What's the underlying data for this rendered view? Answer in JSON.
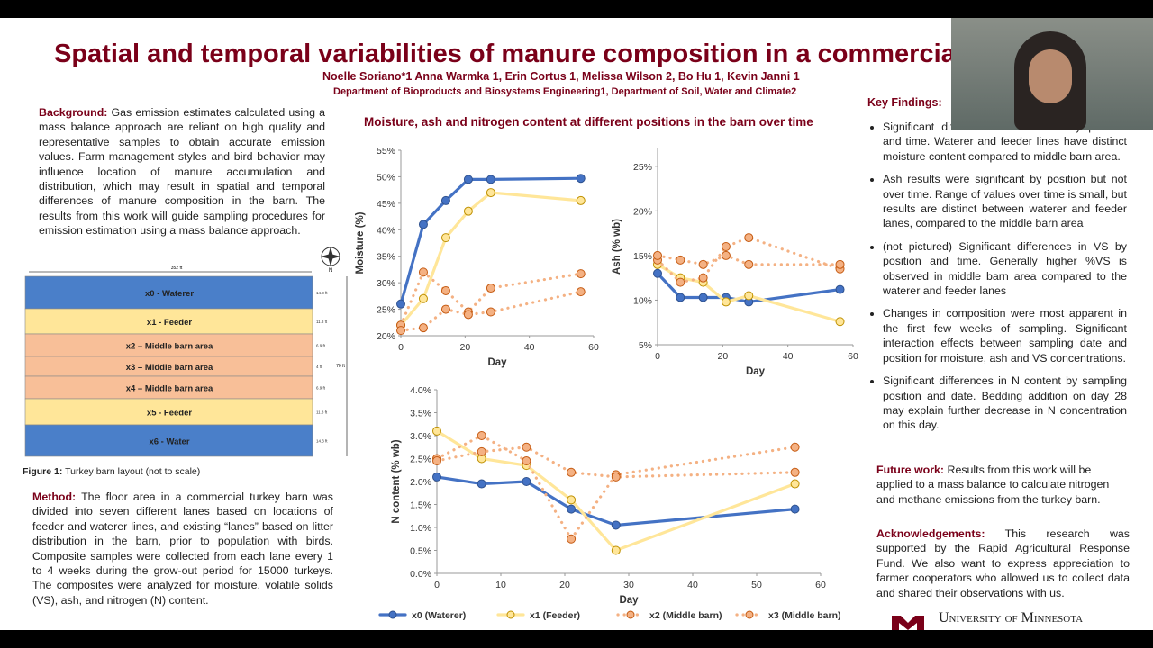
{
  "title": "Spatial and temporal variabilities of manure composition in a commercial tu",
  "authors": "Noelle Soriano*1 Anna Warmka 1, Erin Cortus 1, Melissa Wilson 2, Bo Hu 1, Kevin Janni 1",
  "affiliation": "Department of Bioproducts and Biosystems Engineering1, Department of Soil, Water and Climate2",
  "background": {
    "heading": "Background:",
    "text": "Gas emission estimates calculated using a mass balance approach are reliant on high quality and representative samples to obtain accurate emission values. Farm management styles and bird behavior may influence location of manure accumulation and distribution, which may result in spatial and temporal differences of manure composition in the barn. The results from this work will guide sampling procedures for emission estimation using a mass balance approach."
  },
  "barn": {
    "width_label": "352 ft",
    "total": "70 ft",
    "north": "N",
    "lanes": [
      {
        "label": "x0 - Waterer",
        "dim": "14.3 ft",
        "color": "#4a7fc9"
      },
      {
        "label": "x1 - Feeder",
        "dim": "11.8 ft",
        "color": "#ffe699"
      },
      {
        "label": "x2 – Middle barn area",
        "dim": "6.9 ft",
        "color": "#f8bf98"
      },
      {
        "label": "x3 – Middle barn area",
        "dim": "4 ft",
        "color": "#f8bf98"
      },
      {
        "label": "x4 – Middle barn area",
        "dim": "6.9 ft",
        "color": "#f8bf98"
      },
      {
        "label": "x5 - Feeder",
        "dim": "11.8 ft",
        "color": "#ffe699"
      },
      {
        "label": "x6 - Water",
        "dim": "14.3 ft",
        "color": "#4a7fc9"
      }
    ]
  },
  "figure_caption": {
    "label": "Figure 1:",
    "text": "Turkey barn layout (not to scale)"
  },
  "method": {
    "heading": "Method:",
    "text": "The floor area in a commercial turkey barn was divided into seven different lanes based on locations of feeder and waterer lines, and existing “lanes” based on litter distribution in the barn, prior to population with birds. Composite samples were collected from each lane every 1 to 4 weeks during the grow-out period for 15000 turkeys. The composites were analyzed for moisture, volatile solids (VS), ash, and nitrogen (N) content."
  },
  "charts_title": "Moisture, ash and nitrogen content at different positions in the barn over time",
  "legend": [
    {
      "name": "x0  (Waterer)",
      "color": "#4472c4",
      "style": "solid"
    },
    {
      "name": "x1  (Feeder)",
      "color": "#ffe699",
      "style": "solid"
    },
    {
      "name": "x2  (Middle barn)",
      "color": "#f4b183",
      "style": "dotted"
    },
    {
      "name": "x3  (Middle barn)",
      "color": "#f4b183",
      "style": "dotted"
    }
  ],
  "charts": [
    {
      "type": "line",
      "xlabel": "Day",
      "ylabel": "Moisture (%)",
      "xlim": [
        0,
        60
      ],
      "ylim": [
        20,
        55
      ],
      "xticks": [
        0,
        20,
        40,
        60
      ],
      "yticks": [
        {
          "value": 20,
          "label": "20%"
        },
        {
          "value": 25,
          "label": "25%"
        },
        {
          "value": 30,
          "label": "30%"
        },
        {
          "value": 35,
          "label": "35%"
        },
        {
          "value": 40,
          "label": "40%"
        },
        {
          "value": 45,
          "label": "45%"
        },
        {
          "value": 50,
          "label": "50%"
        },
        {
          "value": 55,
          "label": "55%"
        }
      ],
      "x": [
        0,
        7,
        14,
        21,
        28,
        56
      ],
      "series": [
        {
          "values": [
            26,
            41,
            45.5,
            49.5,
            49.5,
            49.7
          ]
        },
        {
          "values": [
            22,
            27,
            38.5,
            43.5,
            47,
            45.5
          ]
        },
        {
          "values": [
            22,
            32,
            28.5,
            24.5,
            29,
            31.7
          ]
        },
        {
          "values": [
            21,
            21.5,
            25,
            24,
            24.5,
            28.3
          ]
        }
      ]
    },
    {
      "type": "line",
      "xlabel": "Day",
      "ylabel": "Ash (% wb)",
      "xlim": [
        0,
        60
      ],
      "ylim": [
        5,
        27
      ],
      "xticks": [
        0,
        20,
        40,
        60
      ],
      "yticks": [
        {
          "value": 5,
          "label": "5%"
        },
        {
          "value": 10,
          "label": "10%"
        },
        {
          "value": 15,
          "label": "15%"
        },
        {
          "value": 20,
          "label": "20%"
        },
        {
          "value": 25,
          "label": "25%"
        }
      ],
      "x": [
        0,
        7,
        14,
        21,
        28,
        56
      ],
      "series": [
        {
          "values": [
            13,
            10.3,
            10.3,
            10.3,
            9.8,
            11.2
          ]
        },
        {
          "values": [
            14,
            12.5,
            12,
            9.8,
            10.5,
            7.6
          ]
        },
        {
          "values": [
            14.5,
            12,
            12.5,
            16,
            17,
            13.5
          ]
        },
        {
          "values": [
            15,
            14.5,
            14,
            15,
            14,
            14
          ]
        }
      ]
    },
    {
      "type": "line",
      "xlabel": "Day",
      "ylabel": "N content (% wb)",
      "xlim": [
        0,
        60
      ],
      "ylim": [
        0,
        4
      ],
      "xticks": [
        0,
        10,
        20,
        30,
        40,
        50,
        60
      ],
      "yticks": [
        {
          "value": 0,
          "label": "0.0%"
        },
        {
          "value": 0.5,
          "label": "0.5%"
        },
        {
          "value": 1,
          "label": "1.0%"
        },
        {
          "value": 1.5,
          "label": "1.5%"
        },
        {
          "value": 2,
          "label": "2.0%"
        },
        {
          "value": 2.5,
          "label": "2.5%"
        },
        {
          "value": 3,
          "label": "3.0%"
        },
        {
          "value": 3.5,
          "label": "3.5%"
        },
        {
          "value": 4,
          "label": "4.0%"
        }
      ],
      "x": [
        0,
        7,
        14,
        21,
        28,
        56
      ],
      "series": [
        {
          "values": [
            2.1,
            1.95,
            2.0,
            1.4,
            1.05,
            1.4
          ]
        },
        {
          "values": [
            3.1,
            2.5,
            2.35,
            1.6,
            0.5,
            1.95
          ]
        },
        {
          "values": [
            2.5,
            3.0,
            2.45,
            0.75,
            2.15,
            2.75
          ]
        },
        {
          "values": [
            2.45,
            2.65,
            2.75,
            2.2,
            2.1,
            2.2
          ]
        }
      ]
    }
  ],
  "key_findings": {
    "heading": "Key Findings:",
    "items": [
      "Significant differences in moisture by position and time. Waterer and feeder lines have distinct moisture content compared to middle barn area.",
      "Ash results were significant by position but not over time. Range of values over time is small, but results are distinct between waterer and feeder lanes, compared to the middle barn area",
      "(not pictured) Significant differences in VS by position and time. Generally higher %VS is observed in middle barn area compared to the waterer and feeder lanes",
      "Changes in composition were most apparent in the first few weeks of sampling. Significant interaction effects between sampling date and position for moisture, ash and VS concentrations.",
      "Significant differences in N content by sampling position and date. Bedding addition on day 28 may explain further decrease in N concentration on this day."
    ]
  },
  "future_work": {
    "heading": "Future work:",
    "text": "Results from this work will be applied to a mass balance  to calculate nitrogen and methane emissions from the turkey barn."
  },
  "acknowledgements": {
    "heading": "Acknowledgements:",
    "text": "This research was supported by the Rapid Agricultural Response Fund. We also want to express appreciation to farmer cooperators who allowed us to collect data and shared their observations with us."
  },
  "logo": "University of Minnesota"
}
